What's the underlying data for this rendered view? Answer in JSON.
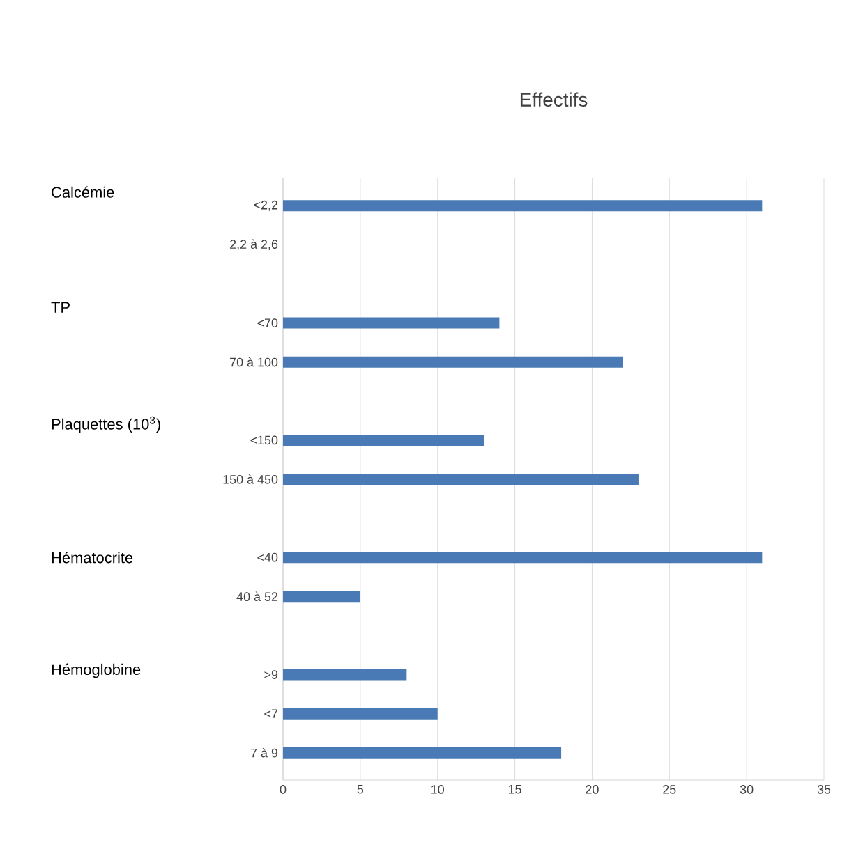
{
  "chart_data": {
    "type": "bar",
    "orientation": "horizontal",
    "title": "Effectifs",
    "categories": [
      "<2,2",
      "2,2 à 2,6",
      null,
      "<70",
      "70 à 100",
      null,
      "<150",
      "150 à 450",
      null,
      "<40",
      "40 à 52",
      null,
      ">9",
      "<7",
      "7 à 9"
    ],
    "values": [
      31,
      0,
      null,
      14,
      22,
      null,
      13,
      23,
      null,
      31,
      5,
      null,
      8,
      10,
      18
    ],
    "color": "#4a7ab5",
    "xlim": [
      0,
      35
    ],
    "xticks": [
      0,
      5,
      10,
      15,
      20,
      25,
      30,
      35
    ],
    "grid": "x",
    "annotations": [
      "Calcémie",
      "TP",
      "Plaquettes (10$^{3}$)",
      "Hématocrite",
      "Hémoglobine"
    ]
  }
}
